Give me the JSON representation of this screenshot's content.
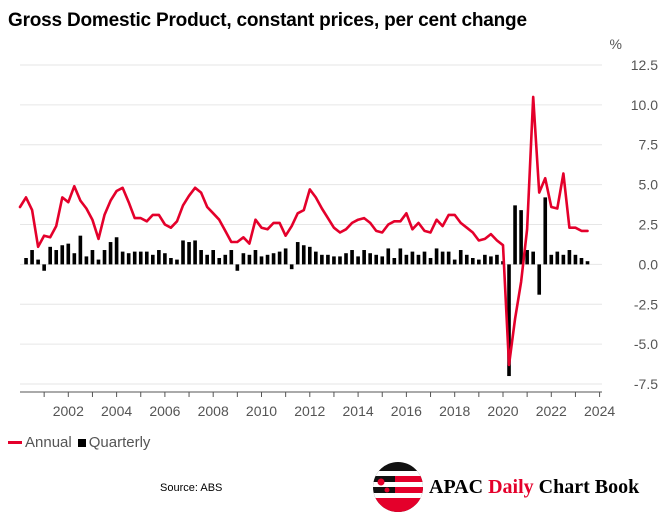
{
  "title": "Gross Domestic Product, constant prices, per cent change",
  "source": "Source: ABS",
  "brand": {
    "name_prefix": "APAC ",
    "name_accent": "Daily",
    "name_suffix": " Chart Book"
  },
  "colors": {
    "annual": "#e4002b",
    "quarterly": "#000000",
    "grid": "#e6e6e6",
    "axis": "#555555"
  },
  "chart_data": {
    "type": "bar+line",
    "title": "Gross Domestic Product, constant prices, per cent change",
    "y_unit": "%",
    "ylim": [
      -8.0,
      13.0
    ],
    "y_ticks": [
      12.5,
      10.0,
      7.5,
      5.0,
      2.5,
      0.0,
      -2.5,
      -5.0,
      -7.5
    ],
    "y_tick_labels": [
      "12.5",
      "10.0",
      "7.5",
      "5.0",
      "2.5",
      "0.0",
      "-2.5",
      "-5.0",
      "-7.5"
    ],
    "xlim": [
      2000.0,
      2024.1
    ],
    "x_ticks": [
      2002,
      2004,
      2006,
      2008,
      2010,
      2012,
      2014,
      2016,
      2018,
      2020,
      2022,
      2024
    ],
    "x_tick_labels": [
      "2002",
      "2004",
      "2006",
      "2008",
      "2010",
      "2012",
      "2014",
      "2016",
      "2018",
      "2020",
      "2022",
      "2024"
    ],
    "legend": [
      "Annual",
      "Quarterly"
    ],
    "legend_position": "bottom-left",
    "series": [
      {
        "name": "Quarterly",
        "kind": "bar",
        "start": 2000.25,
        "step": 0.25,
        "values": [
          0.4,
          0.9,
          0.3,
          -0.4,
          1.1,
          0.9,
          1.2,
          1.3,
          0.7,
          1.8,
          0.5,
          0.9,
          0.3,
          0.9,
          1.4,
          1.7,
          0.8,
          0.7,
          0.8,
          0.8,
          0.8,
          0.6,
          0.9,
          0.7,
          0.4,
          0.3,
          1.5,
          1.4,
          1.5,
          0.9,
          0.6,
          0.9,
          0.4,
          0.6,
          0.9,
          -0.4,
          0.7,
          0.6,
          0.9,
          0.5,
          0.6,
          0.7,
          0.8,
          1.0,
          -0.3,
          1.4,
          1.2,
          1.1,
          0.8,
          0.6,
          0.6,
          0.5,
          0.5,
          0.7,
          0.9,
          0.5,
          0.9,
          0.7,
          0.6,
          0.5,
          1.0,
          0.4,
          1.0,
          0.6,
          0.8,
          0.6,
          0.8,
          0.4,
          1.0,
          0.8,
          0.8,
          0.3,
          0.9,
          0.6,
          0.4,
          0.3,
          0.6,
          0.5,
          0.6,
          0.2,
          -7.0,
          3.7,
          3.4,
          0.9,
          0.8,
          -1.9,
          4.2,
          0.6,
          0.8,
          0.6,
          0.9,
          0.6,
          0.4,
          0.2
        ],
        "color": "#000000"
      },
      {
        "name": "Annual",
        "kind": "line",
        "start": 2000.0,
        "step": 0.25,
        "values": [
          3.6,
          4.2,
          3.4,
          1.1,
          1.8,
          1.7,
          2.4,
          4.2,
          3.9,
          4.9,
          4.0,
          3.5,
          2.8,
          1.6,
          3.1,
          4.0,
          4.6,
          4.8,
          3.9,
          2.9,
          2.9,
          2.7,
          3.1,
          3.1,
          2.5,
          2.3,
          2.7,
          3.7,
          4.3,
          4.8,
          4.5,
          3.6,
          3.2,
          2.8,
          2.1,
          1.4,
          1.4,
          1.7,
          1.3,
          2.8,
          2.3,
          2.2,
          2.6,
          2.6,
          1.8,
          2.4,
          3.2,
          3.4,
          4.7,
          4.2,
          3.5,
          2.9,
          2.3,
          2.0,
          2.2,
          2.6,
          2.8,
          2.9,
          2.6,
          2.1,
          2.0,
          2.5,
          2.7,
          2.7,
          3.2,
          2.2,
          2.6,
          2.1,
          2.0,
          2.8,
          2.4,
          3.1,
          3.1,
          2.6,
          2.3,
          2.0,
          1.5,
          1.6,
          1.9,
          1.5,
          1.2,
          -6.3,
          -3.4,
          -1.1,
          2.2,
          10.5,
          4.5,
          5.4,
          3.6,
          3.5,
          5.7,
          2.3,
          2.3,
          2.1,
          2.1
        ],
        "color": "#e4002b"
      }
    ]
  }
}
